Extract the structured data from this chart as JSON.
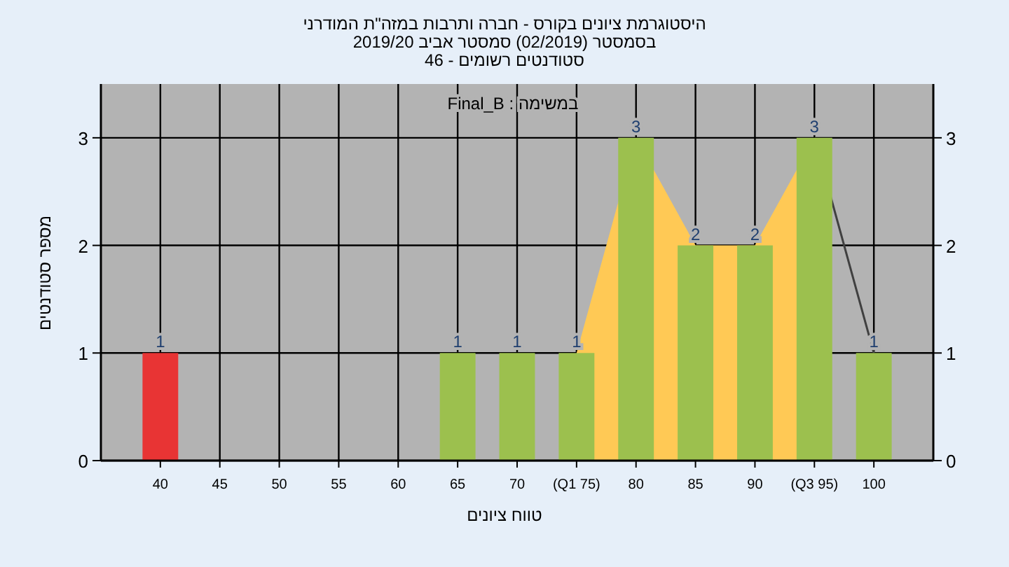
{
  "chart_data": {
    "type": "bar",
    "title": "היסטוגרמת ציונים בקורס - חברה ותרבות במזה\"ת המודרני",
    "subtitle": "בסמסטר  (02/2019)  סמסטר אביב 2019/20",
    "annotations": [
      "סטודנטים רשומים - 46",
      "במשימה : Final_B"
    ],
    "xlabel": "טווח ציונים",
    "ylabel": "מספר סטודנטים",
    "series": [
      {
        "type": "area",
        "color": "#ffc955",
        "x": [
          75,
          80,
          85,
          90,
          95
        ],
        "values": [
          1,
          3,
          2,
          2,
          3
        ]
      },
      {
        "type": "line",
        "color": "#404040",
        "x": [
          95,
          100
        ],
        "values": [
          3,
          1
        ]
      },
      {
        "x": [
          40,
          65,
          70,
          75,
          80,
          85,
          90,
          95,
          100
        ],
        "values": [
          1,
          1,
          1,
          1,
          3,
          2,
          2,
          3,
          1
        ],
        "value_labels": [
          "1",
          "1",
          "1",
          "1",
          "3",
          "2",
          "2",
          "3",
          "1"
        ],
        "colors": [
          "#e83434",
          "#9cc04e",
          "#9cc04e",
          "#9cc04e",
          "#9cc04e",
          "#9cc04e",
          "#9cc04e",
          "#9cc04e",
          "#9cc04e"
        ]
      }
    ],
    "xlim": [
      35,
      105
    ],
    "ylim": [
      0,
      3.5
    ],
    "y2lim": [
      0,
      3.5
    ],
    "xticks": [
      40,
      45,
      50,
      55,
      60,
      65,
      70,
      {
        "value": 75,
        "label": "(Q1 75)"
      },
      80,
      85,
      90,
      {
        "value": 95,
        "label": "(Q3 95)"
      },
      100
    ],
    "yticks": [
      0,
      1,
      2,
      3
    ],
    "y2ticks": [
      0,
      1,
      2,
      3
    ],
    "grid": true
  }
}
